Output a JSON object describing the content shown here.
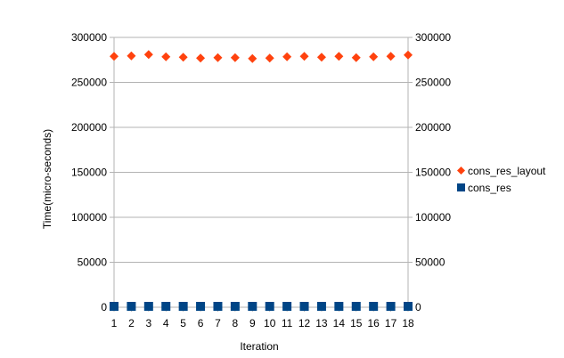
{
  "chart_data": {
    "type": "scatter",
    "title": "",
    "xlabel": "Iteration",
    "ylabel": "Time(micro-seconds)",
    "x": [
      1,
      2,
      3,
      4,
      5,
      6,
      7,
      8,
      9,
      10,
      11,
      12,
      13,
      14,
      15,
      16,
      17,
      18
    ],
    "xticks": [
      "1",
      "2",
      "3",
      "4",
      "5",
      "6",
      "7",
      "8",
      "9",
      "10",
      "11",
      "12",
      "13",
      "14",
      "15",
      "16",
      "17",
      "18"
    ],
    "ylim": [
      0,
      300000
    ],
    "yticks": [
      "0",
      "50000",
      "100000",
      "150000",
      "200000",
      "250000",
      "300000"
    ],
    "secondary_yticks": [
      "0",
      "50000",
      "100000",
      "150000",
      "200000",
      "250000",
      "300000"
    ],
    "grid": true,
    "legend_position": "right",
    "series": [
      {
        "name": "cons_res_layout",
        "marker": "diamond",
        "color": "#ff420e",
        "values": [
          279000,
          279500,
          281000,
          278500,
          278000,
          277000,
          277500,
          277500,
          276500,
          277000,
          278500,
          279000,
          278000,
          279000,
          277500,
          278500,
          279000,
          280500
        ]
      },
      {
        "name": "cons_res",
        "marker": "square",
        "color": "#004586",
        "values": [
          1000,
          1000,
          1000,
          1000,
          1000,
          1000,
          1000,
          1000,
          1000,
          1000,
          1000,
          1000,
          1000,
          1000,
          1000,
          1000,
          1000,
          1000
        ]
      }
    ]
  },
  "style": {
    "grid_color": "#b3b3b3",
    "axis_color": "#b3b3b3",
    "background": "#ffffff"
  }
}
